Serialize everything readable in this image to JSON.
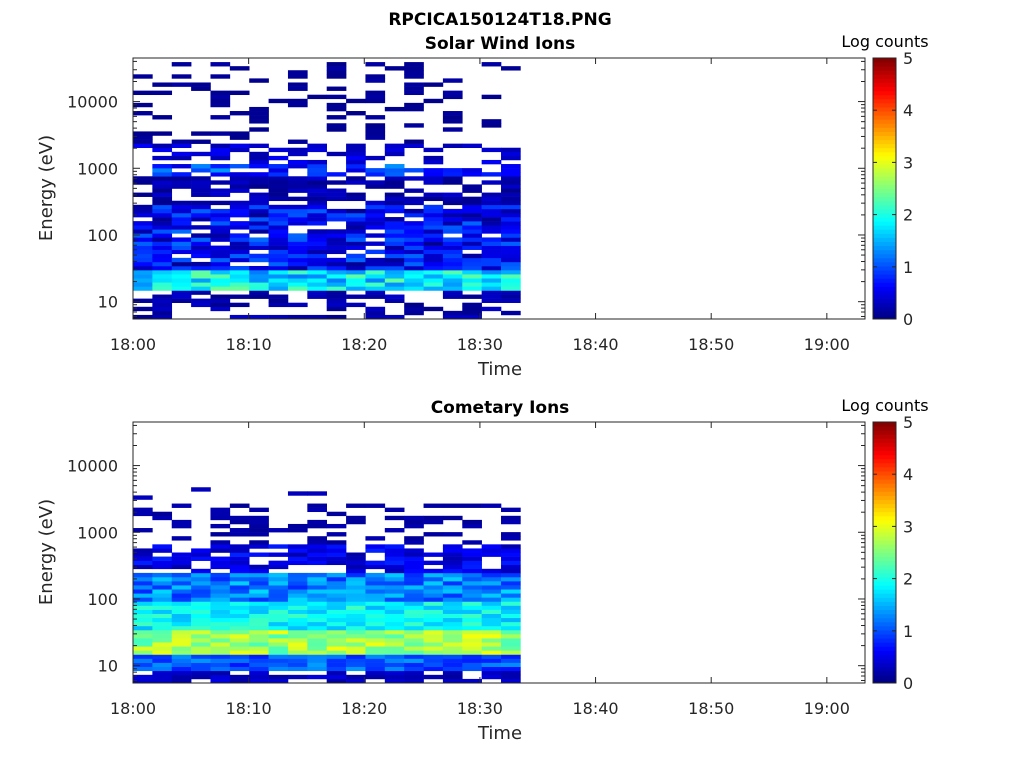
{
  "figure_title": "RPCICA150124T18.PNG",
  "chart_data": [
    {
      "type": "heatmap",
      "title": "Solar Wind Ions",
      "xlabel": "Time",
      "ylabel": "Energy (eV)",
      "x_ticks": [
        "18:00",
        "18:10",
        "18:20",
        "18:30",
        "18:40",
        "18:50",
        "19:00"
      ],
      "y_ticks": [
        "10",
        "100",
        "1000",
        "10000"
      ],
      "y_scale": "log",
      "ylim_ev": [
        5.5,
        45000
      ],
      "data_time_range": [
        "18:00",
        "18:33.5"
      ],
      "colorbar": {
        "label": "Log counts",
        "ticks": [
          "0",
          "1",
          "2",
          "3",
          "4",
          "5"
        ],
        "range": [
          0,
          5
        ],
        "colormap": "jet"
      },
      "description_of_values": "Mostly 0-1.5 log counts above 100 eV with sparse high-energy returns; a band of 1.5-2.5 log counts near 20 eV and a faint band near 1000 eV",
      "peak_band_ev": 20,
      "peak_log_counts": 2.4
    },
    {
      "type": "heatmap",
      "title": "Cometary Ions",
      "xlabel": "Time",
      "ylabel": "Energy (eV)",
      "x_ticks": [
        "18:00",
        "18:10",
        "18:20",
        "18:30",
        "18:40",
        "18:50",
        "19:00"
      ],
      "y_ticks": [
        "10",
        "100",
        "1000",
        "10000"
      ],
      "y_scale": "log",
      "ylim_ev": [
        5.5,
        45000
      ],
      "data_time_range": [
        "18:00",
        "18:33.5"
      ],
      "colorbar": {
        "label": "Log counts",
        "ticks": [
          "0",
          "1",
          "2",
          "3",
          "4",
          "5"
        ],
        "range": [
          0,
          5
        ],
        "colormap": "jet"
      },
      "description_of_values": "Counts rise from ~0.5 at 600 eV to ~3 log counts at 20-30 eV, sparse returns up to ~5000 eV",
      "peak_band_ev": 25,
      "peak_log_counts": 3.0
    }
  ]
}
